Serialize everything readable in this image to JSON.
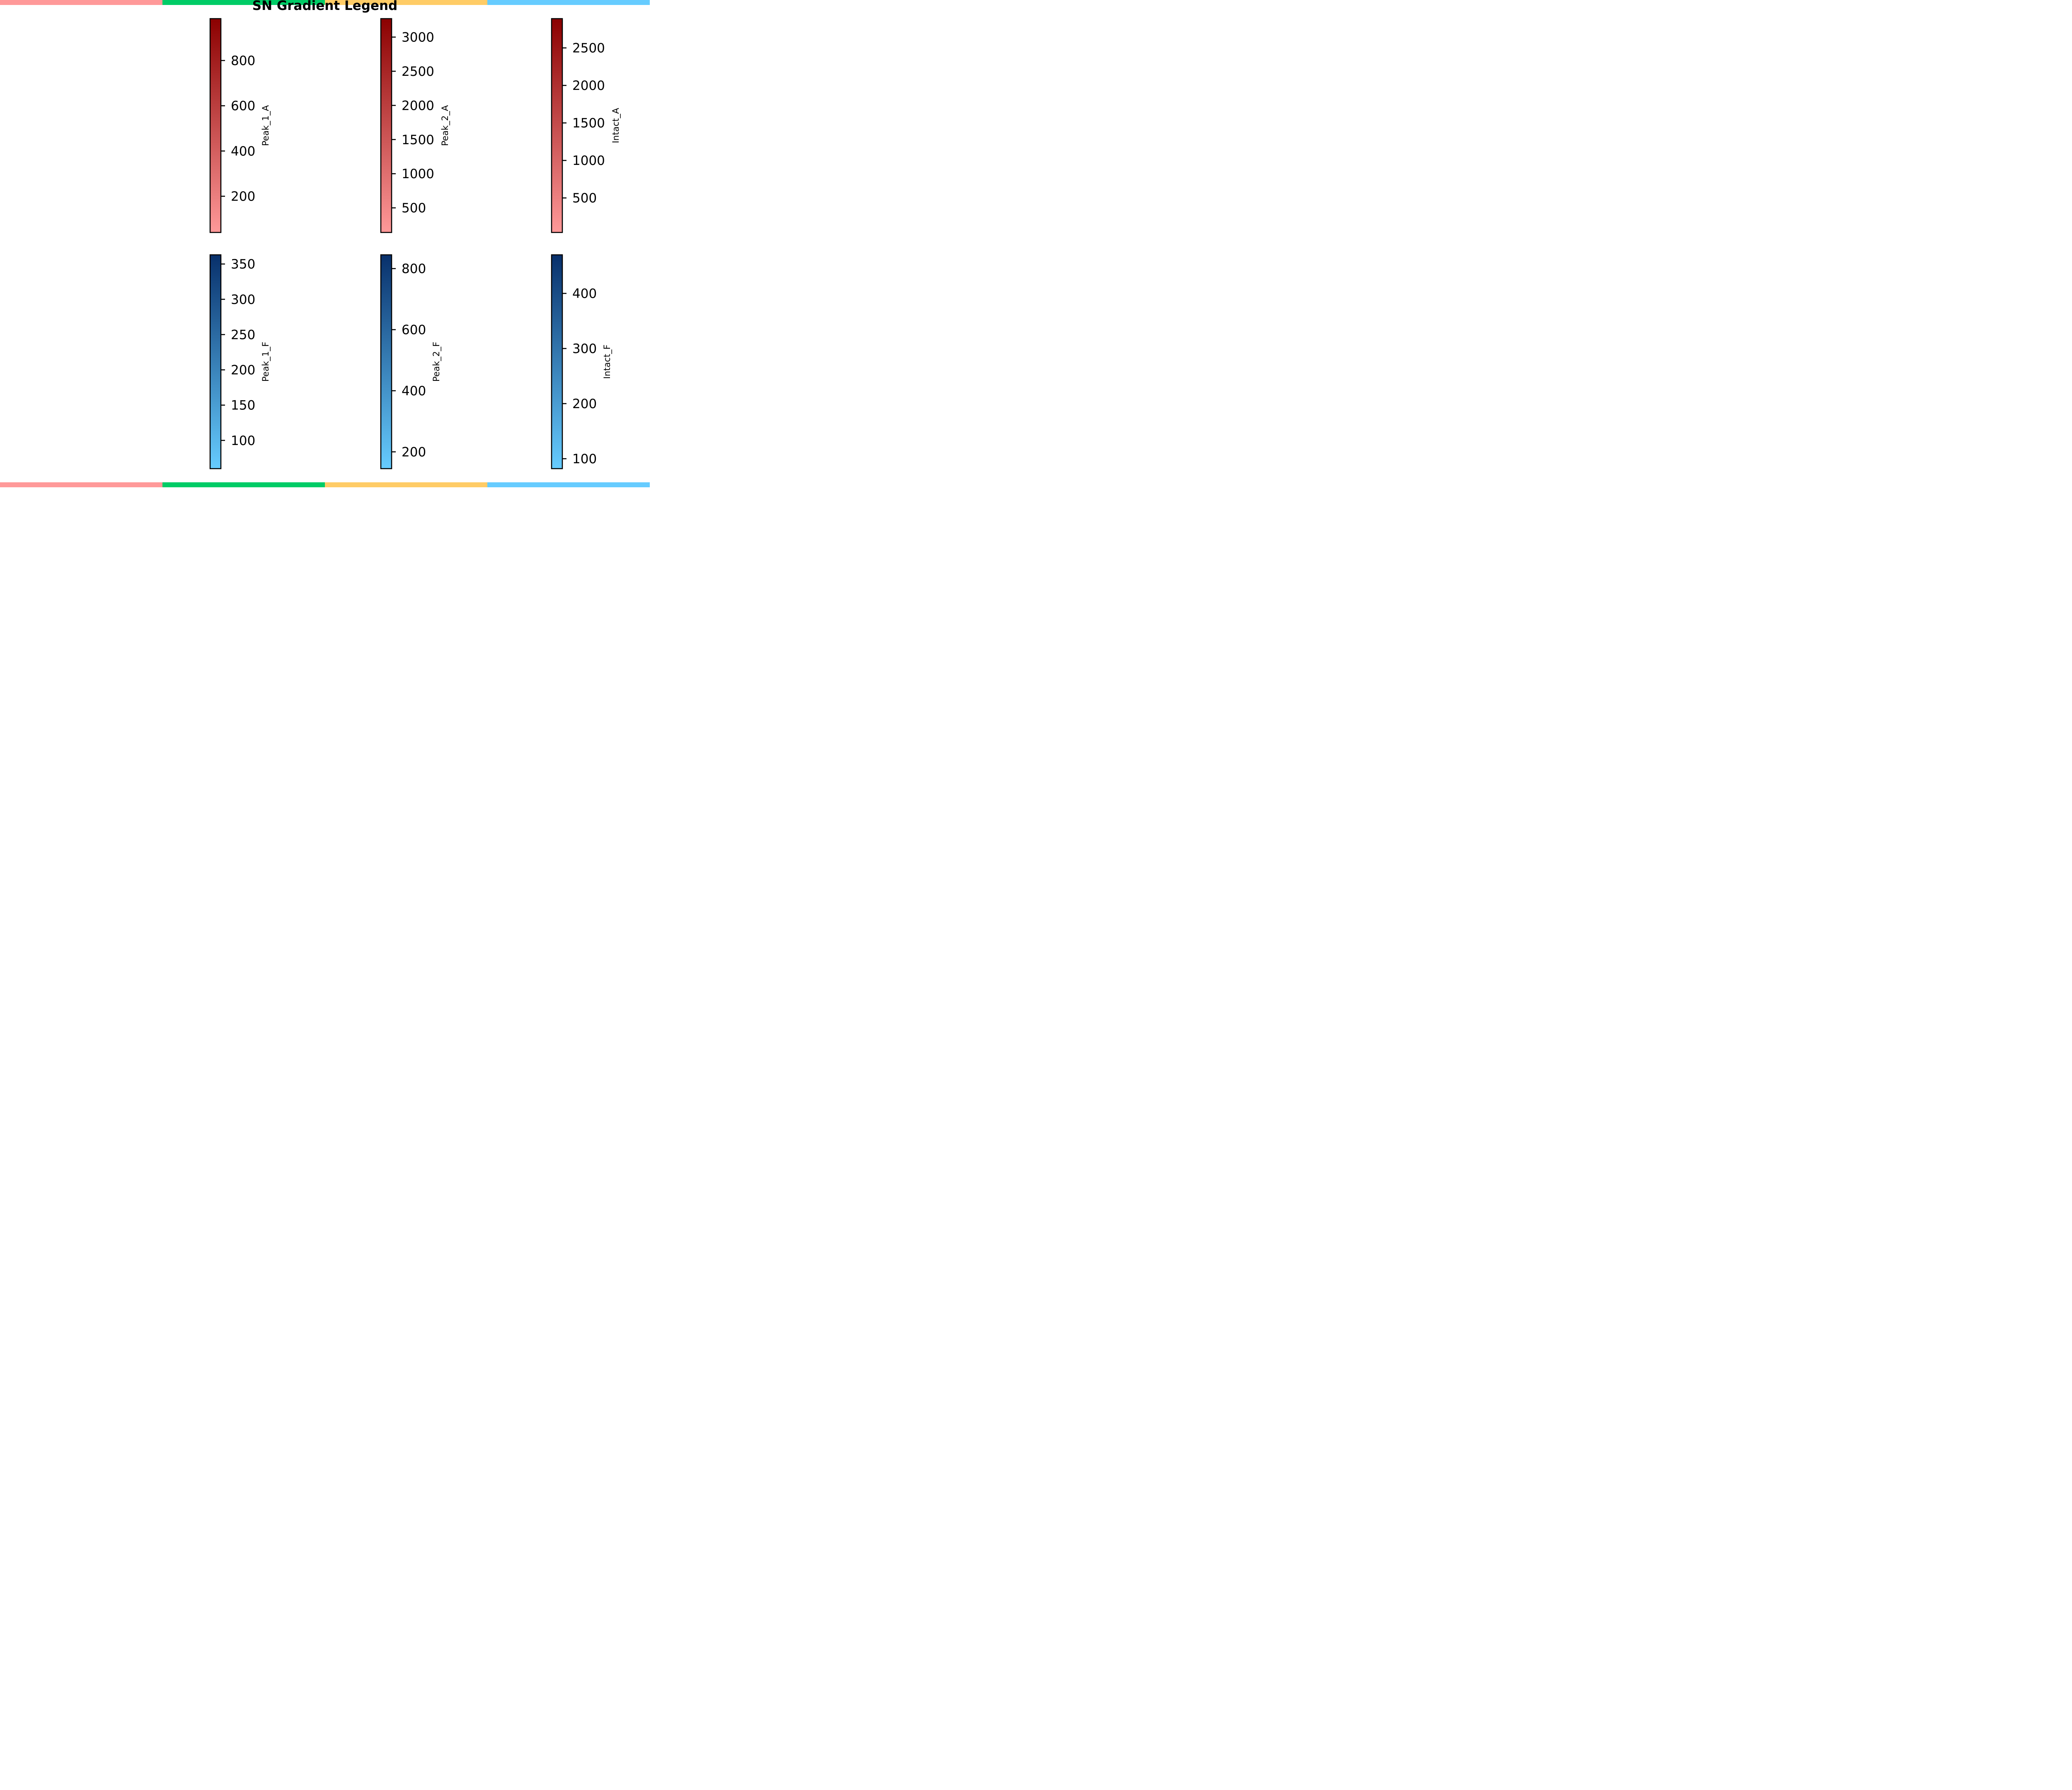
{
  "title": "SN Gradient Legend",
  "stripe_colors": [
    "#ff9999",
    "#00cc66",
    "#ffcc66",
    "#66ccff"
  ],
  "chart_data": [
    {
      "type": "heatmap",
      "label": "Peak_1_A",
      "range": [
        40,
        985
      ],
      "ticks": [
        200,
        400,
        600,
        800
      ],
      "tick_labels": [
        "200",
        "400",
        "600",
        "800"
      ],
      "colormap": {
        "low": "#ff9999",
        "high": "#8b0000"
      }
    },
    {
      "type": "heatmap",
      "label": "Peak_2_A",
      "range": [
        140,
        3270
      ],
      "ticks": [
        500,
        1000,
        1500,
        2000,
        2500,
        3000
      ],
      "tick_labels": [
        "500",
        "1000",
        "1500",
        "2000",
        "2500",
        "3000"
      ],
      "colormap": {
        "low": "#ff9999",
        "high": "#8b0000"
      }
    },
    {
      "type": "heatmap",
      "label": "Intact_A",
      "range": [
        40,
        2890
      ],
      "ticks": [
        500,
        1000,
        1500,
        2000,
        2500
      ],
      "tick_labels": [
        "500",
        "1000",
        "1500",
        "2000",
        "2500"
      ],
      "colormap": {
        "low": "#ff9999",
        "high": "#8b0000"
      }
    },
    {
      "type": "heatmap",
      "label": "Peak_1_F",
      "range": [
        60,
        363
      ],
      "ticks": [
        100,
        150,
        200,
        250,
        300,
        350
      ],
      "tick_labels": [
        "100",
        "150",
        "200",
        "250",
        "300",
        "350"
      ],
      "colormap": {
        "low": "#66ccff",
        "high": "#08306b"
      }
    },
    {
      "type": "heatmap",
      "label": "Peak_2_F",
      "range": [
        145,
        845
      ],
      "ticks": [
        200,
        400,
        600,
        800
      ],
      "tick_labels": [
        "200",
        "400",
        "600",
        "800"
      ],
      "colormap": {
        "low": "#66ccff",
        "high": "#08306b"
      }
    },
    {
      "type": "heatmap",
      "label": "Intact_F",
      "range": [
        82,
        470
      ],
      "ticks": [
        100,
        200,
        300,
        400
      ],
      "tick_labels": [
        "100",
        "200",
        "300",
        "400"
      ],
      "colormap": {
        "low": "#66ccff",
        "high": "#08306b"
      }
    }
  ]
}
